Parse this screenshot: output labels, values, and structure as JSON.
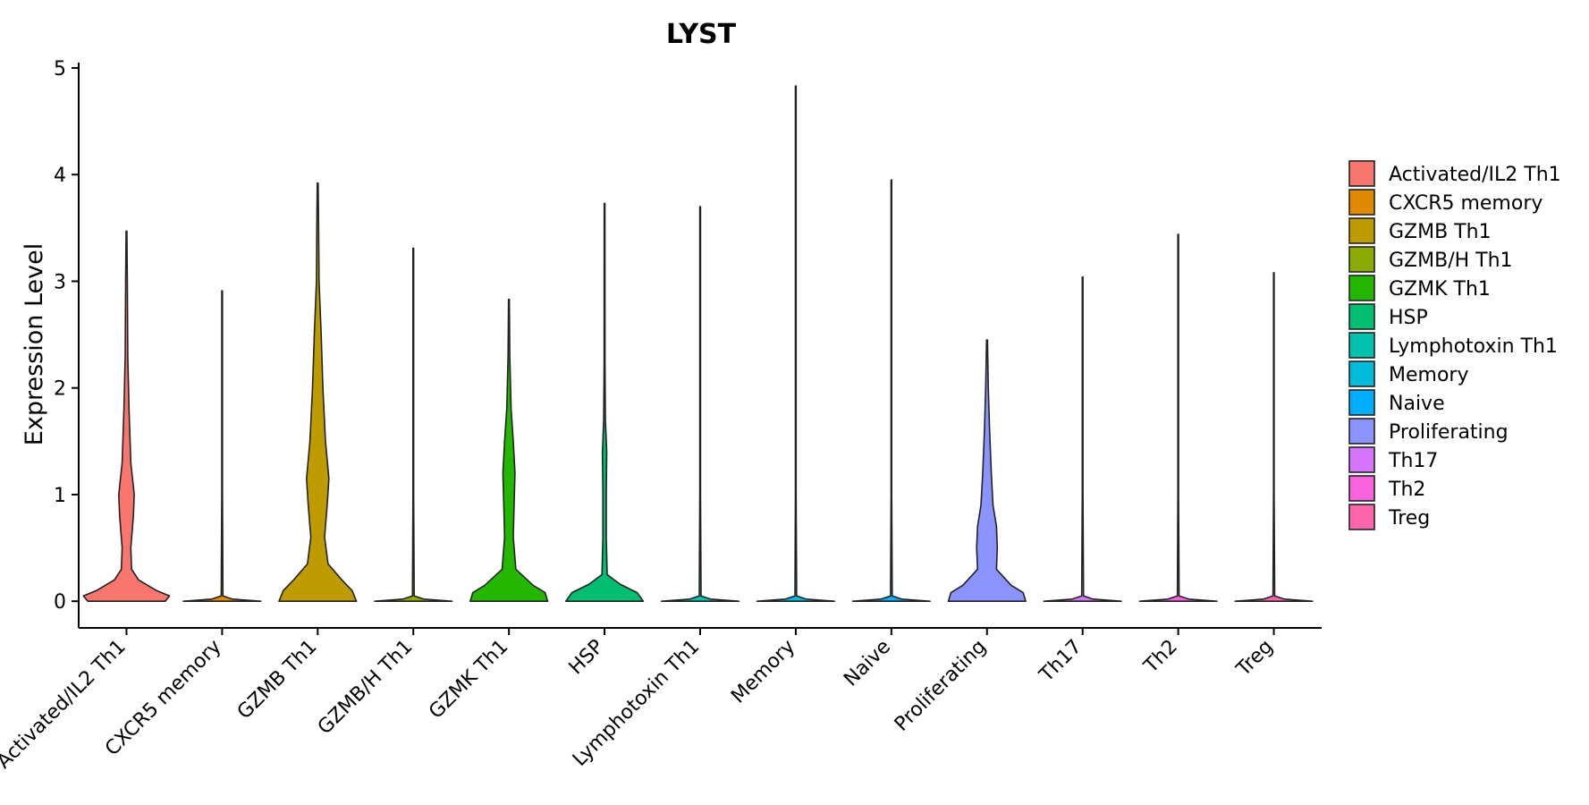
{
  "chart_data": {
    "type": "violin",
    "title": "LYST",
    "xlabel": "",
    "ylabel": "Expression Level",
    "ylim": [
      -0.25,
      5.05
    ],
    "yticks": [
      0,
      1,
      2,
      3,
      4,
      5
    ],
    "categories": [
      "Activated/IL2 Th1",
      "CXCR5 memory",
      "GZMB Th1",
      "GZMB/H Th1",
      "GZMK Th1",
      "HSP",
      "Lymphotoxin Th1",
      "Memory",
      "Naive",
      "Proliferating",
      "Th17",
      "Th2",
      "Treg"
    ],
    "colors": [
      "#F8766D",
      "#E18A00",
      "#BE9C00",
      "#8CAB00",
      "#24B700",
      "#00BE70",
      "#00C1AB",
      "#00BBDA",
      "#00ACFC",
      "#8B93FF",
      "#D575FE",
      "#F962DD",
      "#FF65AC"
    ],
    "max_values": [
      3.47,
      2.91,
      3.92,
      3.31,
      2.83,
      3.73,
      3.7,
      4.83,
      3.95,
      2.45,
      3.04,
      3.44,
      3.08
    ],
    "violin_profiles": [
      [
        [
          0,
          0.45
        ],
        [
          0.05,
          0.5
        ],
        [
          0.1,
          0.35
        ],
        [
          0.2,
          0.14
        ],
        [
          0.3,
          0.06
        ],
        [
          0.5,
          0.05
        ],
        [
          0.8,
          0.08
        ],
        [
          1.0,
          0.09
        ],
        [
          1.3,
          0.05
        ],
        [
          1.8,
          0.03
        ],
        [
          2.3,
          0.015
        ],
        [
          3.0,
          0.01
        ],
        [
          3.47,
          0.005
        ]
      ],
      [
        [
          0,
          0.45
        ],
        [
          0.02,
          0.12
        ],
        [
          0.05,
          0.01
        ],
        [
          1.0,
          0.004
        ],
        [
          2.91,
          0.004
        ]
      ],
      [
        [
          0,
          0.45
        ],
        [
          0.1,
          0.4
        ],
        [
          0.2,
          0.28
        ],
        [
          0.35,
          0.12
        ],
        [
          0.6,
          0.08
        ],
        [
          0.9,
          0.11
        ],
        [
          1.15,
          0.13
        ],
        [
          1.5,
          0.09
        ],
        [
          2.0,
          0.06
        ],
        [
          2.5,
          0.04
        ],
        [
          3.0,
          0.015
        ],
        [
          3.5,
          0.01
        ],
        [
          3.92,
          0.005
        ]
      ],
      [
        [
          0,
          0.45
        ],
        [
          0.02,
          0.12
        ],
        [
          0.05,
          0.01
        ],
        [
          1.0,
          0.004
        ],
        [
          3.31,
          0.004
        ]
      ],
      [
        [
          0,
          0.45
        ],
        [
          0.08,
          0.42
        ],
        [
          0.15,
          0.28
        ],
        [
          0.3,
          0.08
        ],
        [
          0.6,
          0.05
        ],
        [
          0.9,
          0.06
        ],
        [
          1.2,
          0.07
        ],
        [
          1.5,
          0.05
        ],
        [
          1.8,
          0.025
        ],
        [
          2.3,
          0.01
        ],
        [
          2.83,
          0.005
        ]
      ],
      [
        [
          0,
          0.45
        ],
        [
          0.08,
          0.38
        ],
        [
          0.16,
          0.18
        ],
        [
          0.25,
          0.03
        ],
        [
          0.6,
          0.02
        ],
        [
          1.0,
          0.02
        ],
        [
          1.4,
          0.025
        ],
        [
          1.7,
          0.01
        ],
        [
          2.2,
          0.005
        ],
        [
          3.73,
          0.004
        ]
      ],
      [
        [
          0,
          0.45
        ],
        [
          0.02,
          0.12
        ],
        [
          0.05,
          0.01
        ],
        [
          1.0,
          0.004
        ],
        [
          3.7,
          0.004
        ]
      ],
      [
        [
          0,
          0.45
        ],
        [
          0.02,
          0.12
        ],
        [
          0.05,
          0.01
        ],
        [
          1.0,
          0.004
        ],
        [
          4.83,
          0.004
        ]
      ],
      [
        [
          0,
          0.45
        ],
        [
          0.02,
          0.12
        ],
        [
          0.05,
          0.01
        ],
        [
          1.0,
          0.004
        ],
        [
          3.95,
          0.004
        ]
      ],
      [
        [
          0,
          0.45
        ],
        [
          0.08,
          0.42
        ],
        [
          0.15,
          0.28
        ],
        [
          0.3,
          0.11
        ],
        [
          0.5,
          0.12
        ],
        [
          0.7,
          0.11
        ],
        [
          0.9,
          0.07
        ],
        [
          1.2,
          0.05
        ],
        [
          1.6,
          0.03
        ],
        [
          2.0,
          0.015
        ],
        [
          2.45,
          0.005
        ]
      ],
      [
        [
          0,
          0.45
        ],
        [
          0.02,
          0.12
        ],
        [
          0.05,
          0.01
        ],
        [
          1.0,
          0.004
        ],
        [
          3.04,
          0.004
        ]
      ],
      [
        [
          0,
          0.45
        ],
        [
          0.02,
          0.12
        ],
        [
          0.05,
          0.01
        ],
        [
          1.0,
          0.004
        ],
        [
          3.44,
          0.004
        ]
      ],
      [
        [
          0,
          0.45
        ],
        [
          0.02,
          0.12
        ],
        [
          0.05,
          0.01
        ],
        [
          1.0,
          0.004
        ],
        [
          3.08,
          0.004
        ]
      ]
    ],
    "legend": {
      "position": "right",
      "entries": [
        "Activated/IL2 Th1",
        "CXCR5 memory",
        "GZMB Th1",
        "GZMB/H Th1",
        "GZMK Th1",
        "HSP",
        "Lymphotoxin Th1",
        "Memory",
        "Naive",
        "Proliferating",
        "Th17",
        "Th2",
        "Treg"
      ]
    }
  }
}
